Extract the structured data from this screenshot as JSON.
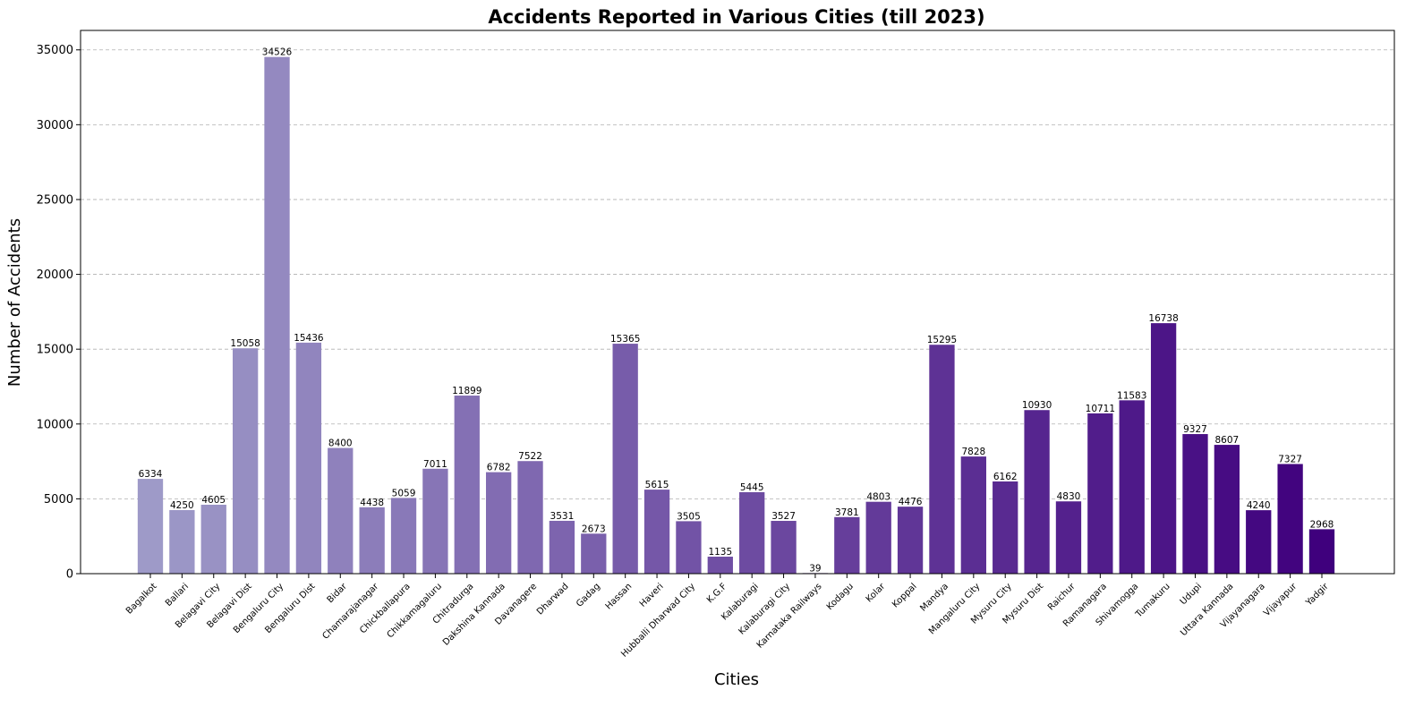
{
  "chart_data": {
    "type": "bar",
    "title": "Accidents Reported in Various Cities (till 2023)",
    "xlabel": "Cities",
    "ylabel": "Number of Accidents",
    "ylim": [
      0,
      36300
    ],
    "yticks": [
      0,
      5000,
      10000,
      15000,
      20000,
      25000,
      30000,
      35000
    ],
    "grid": "horizontal-dashed",
    "categories": [
      "Bagalkot",
      "Ballari",
      "Belagavi City",
      "Belagavi Dist",
      "Bengaluru City",
      "Bengaluru Dist",
      "Bidar",
      "Chamarajanagar",
      "Chickballapura",
      "Chikkamagaluru",
      "Chitradurga",
      "Dakshina Kannada",
      "Davanagere",
      "Dharwad",
      "Gadag",
      "Hassan",
      "Haveri",
      "Hubballi Dharwad City",
      "K.G.F",
      "Kalaburagi",
      "Kalaburagi City",
      "Karnataka Railways",
      "Kodagu",
      "Kolar",
      "Koppal",
      "Mandya",
      "Mangaluru City",
      "Mysuru City",
      "Mysuru Dist",
      "Raichur",
      "Ramanagara",
      "Shivamogga",
      "Tumakuru",
      "Udupi",
      "Uttara Kannada",
      "Vijayanagara",
      "Vijayapur",
      "Yadgir"
    ],
    "values": [
      6334,
      4250,
      4605,
      15058,
      34526,
      15436,
      8400,
      4438,
      5059,
      7011,
      11899,
      6782,
      7522,
      3531,
      2673,
      15365,
      5615,
      3505,
      1135,
      5445,
      3527,
      39,
      3781,
      4803,
      4476,
      15295,
      7828,
      6162,
      10930,
      4830,
      10711,
      11583,
      16738,
      9327,
      8607,
      4240,
      7327,
      2968
    ],
    "colors": {
      "gradient_start": "#9e9ac8",
      "gradient_end": "#3f007d",
      "grid": "#b0b0b0",
      "axis": "#000000"
    }
  }
}
